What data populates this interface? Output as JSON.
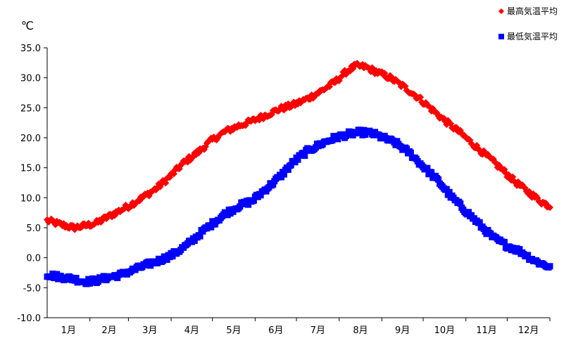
{
  "chart_data": {
    "type": "scatter",
    "title": "",
    "xlabel": "",
    "ylabel": "℃",
    "ylim": [
      -10.0,
      35.0
    ],
    "yticks": [
      "35.0",
      "30.0",
      "25.0",
      "20.0",
      "15.0",
      "10.0",
      "5.0",
      "0.0",
      "-5.0",
      "-10.0"
    ],
    "ytick_values": [
      35,
      30,
      25,
      20,
      15,
      10,
      5,
      0,
      -5,
      -10
    ],
    "categories": [
      "1月",
      "2月",
      "3月",
      "4月",
      "5月",
      "6月",
      "7月",
      "8月",
      "9月",
      "10月",
      "11月",
      "12月"
    ],
    "x_unit": "day of year",
    "xlim": [
      1,
      366
    ],
    "legend_position": "top-right",
    "grid": false,
    "series": [
      {
        "name": "最高気温平均",
        "color": "#ff0000",
        "marker": "diamond",
        "key_points": [
          [
            1,
            6.2
          ],
          [
            10,
            5.6
          ],
          [
            20,
            5.0
          ],
          [
            28,
            5.3
          ],
          [
            37,
            5.8
          ],
          [
            45,
            6.8
          ],
          [
            55,
            8.0
          ],
          [
            60,
            8.6
          ],
          [
            70,
            10.0
          ],
          [
            80,
            11.5
          ],
          [
            90,
            13.5
          ],
          [
            100,
            15.8
          ],
          [
            110,
            17.5
          ],
          [
            120,
            19.5
          ],
          [
            130,
            21.0
          ],
          [
            140,
            22.0
          ],
          [
            150,
            22.8
          ],
          [
            160,
            23.8
          ],
          [
            170,
            24.8
          ],
          [
            180,
            25.5
          ],
          [
            190,
            26.5
          ],
          [
            200,
            27.8
          ],
          [
            210,
            29.3
          ],
          [
            218,
            31.0
          ],
          [
            225,
            32.0
          ],
          [
            232,
            31.8
          ],
          [
            240,
            31.0
          ],
          [
            250,
            30.0
          ],
          [
            260,
            28.5
          ],
          [
            270,
            26.8
          ],
          [
            280,
            24.8
          ],
          [
            290,
            22.8
          ],
          [
            300,
            21.0
          ],
          [
            310,
            19.0
          ],
          [
            320,
            17.0
          ],
          [
            330,
            15.0
          ],
          [
            340,
            12.8
          ],
          [
            350,
            11.0
          ],
          [
            360,
            9.3
          ],
          [
            366,
            8.6
          ]
        ]
      },
      {
        "name": "最低気温平均",
        "color": "#0000ff",
        "marker": "square",
        "key_points": [
          [
            1,
            -2.8
          ],
          [
            10,
            -3.2
          ],
          [
            20,
            -3.5
          ],
          [
            28,
            -4.0
          ],
          [
            37,
            -3.8
          ],
          [
            45,
            -3.3
          ],
          [
            55,
            -2.8
          ],
          [
            62,
            -2.2
          ],
          [
            72,
            -1.3
          ],
          [
            82,
            -0.5
          ],
          [
            92,
            0.5
          ],
          [
            102,
            2.0
          ],
          [
            112,
            4.0
          ],
          [
            120,
            5.5
          ],
          [
            130,
            7.3
          ],
          [
            140,
            8.6
          ],
          [
            150,
            9.5
          ],
          [
            160,
            11.5
          ],
          [
            170,
            13.5
          ],
          [
            180,
            16.0
          ],
          [
            190,
            17.8
          ],
          [
            200,
            19.0
          ],
          [
            210,
            20.0
          ],
          [
            220,
            20.6
          ],
          [
            228,
            20.9
          ],
          [
            236,
            20.8
          ],
          [
            245,
            20.0
          ],
          [
            255,
            19.0
          ],
          [
            265,
            17.3
          ],
          [
            275,
            15.0
          ],
          [
            285,
            12.8
          ],
          [
            295,
            10.0
          ],
          [
            305,
            7.8
          ],
          [
            315,
            5.5
          ],
          [
            325,
            3.3
          ],
          [
            335,
            2.0
          ],
          [
            345,
            1.0
          ],
          [
            355,
            -0.5
          ],
          [
            362,
            -1.2
          ],
          [
            366,
            -1.5
          ]
        ]
      }
    ]
  }
}
